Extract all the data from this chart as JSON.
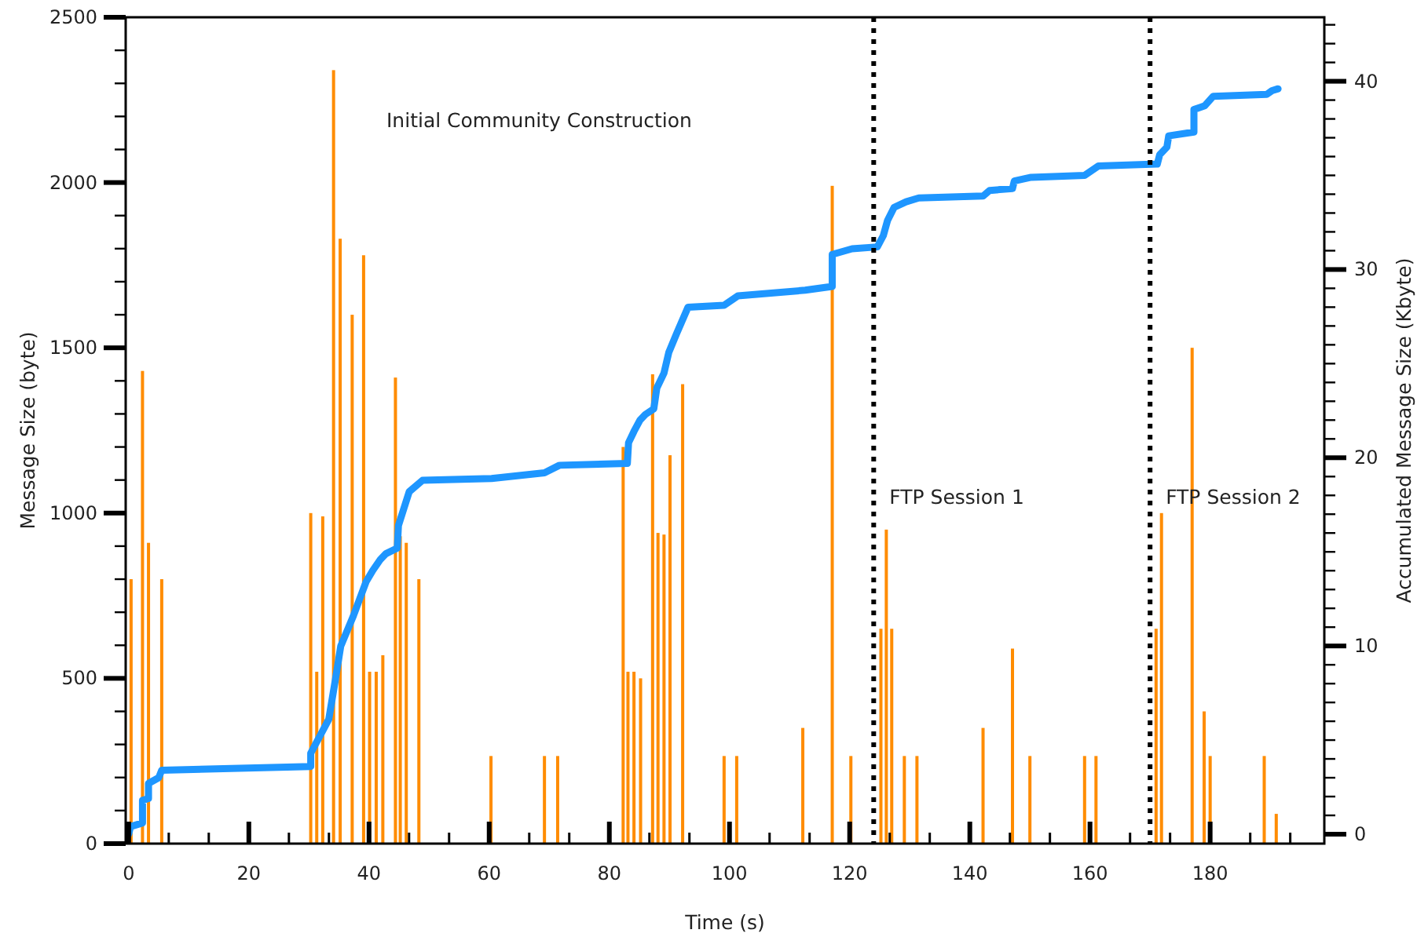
{
  "chart_data": {
    "type": "bar",
    "xlabel": "Time (s)",
    "ylabel": "Message Size (byte)",
    "y2label": "Accumulated Message Size (Kbyte)",
    "annotations": [
      "Initial Community Construction"
    ],
    "xlim": [
      -0.5,
      199
    ],
    "xticks": [
      0,
      {
        "value": 6.67,
        "label": null
      },
      {
        "value": 13.33,
        "label": null
      },
      20,
      {
        "value": 26.67,
        "label": null
      },
      {
        "value": 33.33,
        "label": null
      },
      40,
      {
        "value": 46.67,
        "label": null
      },
      {
        "value": 53.33,
        "label": null
      },
      60,
      {
        "value": 66.67,
        "label": null
      },
      {
        "value": 73.33,
        "label": null
      },
      80,
      {
        "value": 86.67,
        "label": null
      },
      {
        "value": 93.33,
        "label": null
      },
      100,
      {
        "value": 106.67,
        "label": null
      },
      {
        "value": 113.33,
        "label": null
      },
      120,
      {
        "value": 126.67,
        "label": null
      },
      {
        "value": 133.33,
        "label": null
      },
      140,
      {
        "value": 146.67,
        "label": null
      },
      {
        "value": 153.33,
        "label": null
      },
      160,
      {
        "value": 166.67,
        "label": null
      },
      {
        "value": 173.33,
        "label": null
      },
      180,
      {
        "value": 186.67,
        "label": null
      },
      {
        "value": 193.33,
        "label": null
      }
    ],
    "ylim": [
      0,
      2500
    ],
    "yticks": [
      0,
      {
        "value": 100,
        "label": null
      },
      {
        "value": 200,
        "label": null
      },
      {
        "value": 300,
        "label": null
      },
      {
        "value": 400,
        "label": null
      },
      500,
      {
        "value": 600,
        "label": null
      },
      {
        "value": 700,
        "label": null
      },
      {
        "value": 800,
        "label": null
      },
      {
        "value": 900,
        "label": null
      },
      1000,
      {
        "value": 1100,
        "label": null
      },
      {
        "value": 1200,
        "label": null
      },
      {
        "value": 1300,
        "label": null
      },
      {
        "value": 1400,
        "label": null
      },
      1500,
      {
        "value": 1600,
        "label": null
      },
      {
        "value": 1700,
        "label": null
      },
      {
        "value": 1800,
        "label": null
      },
      {
        "value": 1900,
        "label": null
      },
      2000,
      {
        "value": 2100,
        "label": null
      },
      {
        "value": 2200,
        "label": null
      },
      {
        "value": 2300,
        "label": null
      },
      {
        "value": 2400,
        "label": null
      },
      2500
    ],
    "y2lim": [
      -0.5,
      43.4
    ],
    "y2ticks": [
      0,
      {
        "value": 1,
        "label": null
      },
      {
        "value": 2,
        "label": null
      },
      {
        "value": 3,
        "label": null
      },
      {
        "value": 4,
        "label": null
      },
      {
        "value": 5,
        "label": null
      },
      {
        "value": 6,
        "label": null
      },
      {
        "value": 7,
        "label": null
      },
      {
        "value": 8,
        "label": null
      },
      {
        "value": 9,
        "label": null
      },
      10,
      {
        "value": 11,
        "label": null
      },
      {
        "value": 12,
        "label": null
      },
      {
        "value": 13,
        "label": null
      },
      {
        "value": 14,
        "label": null
      },
      {
        "value": 15,
        "label": null
      },
      {
        "value": 16,
        "label": null
      },
      {
        "value": 17,
        "label": null
      },
      {
        "value": 18,
        "label": null
      },
      {
        "value": 19,
        "label": null
      },
      20,
      {
        "value": 21,
        "label": null
      },
      {
        "value": 22,
        "label": null
      },
      {
        "value": 23,
        "label": null
      },
      {
        "value": 24,
        "label": null
      },
      {
        "value": 25,
        "label": null
      },
      {
        "value": 26,
        "label": null
      },
      {
        "value": 27,
        "label": null
      },
      {
        "value": 28,
        "label": null
      },
      {
        "value": 29,
        "label": null
      },
      30,
      {
        "value": 31,
        "label": null
      },
      {
        "value": 32,
        "label": null
      },
      {
        "value": 33,
        "label": null
      },
      {
        "value": 34,
        "label": null
      },
      {
        "value": 35,
        "label": null
      },
      {
        "value": 36,
        "label": null
      },
      {
        "value": 37,
        "label": null
      },
      {
        "value": 38,
        "label": null
      },
      {
        "value": 39,
        "label": null
      },
      40,
      {
        "value": 41,
        "label": null
      },
      {
        "value": 42,
        "label": null
      },
      {
        "value": 43,
        "label": null
      }
    ],
    "ref_lines": [
      {
        "axis": "x",
        "value": 124,
        "label": "FTP Session 1",
        "color": "#000000",
        "line_style": "dotted"
      },
      {
        "axis": "x",
        "value": 170,
        "label": "FTP Session 2",
        "color": "#000000",
        "line_style": "dotted"
      }
    ],
    "series": [
      {
        "color": "#ff8c00",
        "x": [
          0.4,
          2.3,
          3.3,
          5.5,
          30.3,
          31.3,
          32.3,
          34.1,
          35.2,
          37.2,
          39.1,
          40.1,
          41.2,
          42.3,
          44.4,
          45.2,
          46.2,
          48.3,
          60.3,
          69.2,
          71.4,
          82.3,
          83.1,
          84.1,
          85.2,
          87.2,
          88.1,
          89.1,
          90.1,
          92.2,
          99.1,
          101.2,
          112.2,
          117.1,
          120.2,
          125.2,
          126.1,
          127,
          129.1,
          131.2,
          142.2,
          147.1,
          150,
          159.1,
          161,
          171,
          171.9,
          177,
          179,
          180,
          189,
          191
        ],
        "values": [
          800,
          1430,
          910,
          800,
          1000,
          520,
          990,
          2340,
          1830,
          1600,
          1780,
          520,
          520,
          570,
          1410,
          930,
          910,
          800,
          265,
          265,
          265,
          1200,
          520,
          520,
          500,
          1420,
          940,
          935,
          1175,
          1390,
          265,
          265,
          350,
          1990,
          265,
          650,
          950,
          650,
          265,
          265,
          350,
          590,
          265,
          265,
          265,
          650,
          1000,
          1500,
          400,
          265,
          265,
          90
        ]
      },
      {
        "type": "line",
        "axis": "y2",
        "color": "#1e96ff",
        "x": [
          0,
          0.3,
          2.3,
          2.3,
          3.3,
          3.3,
          5.0,
          5.5,
          30.3,
          30.3,
          31.3,
          32.3,
          33.3,
          34.4,
          35.3,
          37.4,
          39.5,
          40.6,
          41.9,
          42.8,
          44.7,
          44.9,
          45.7,
          46.7,
          48.9,
          60.4,
          69.2,
          71.7,
          83.0,
          83.2,
          84.1,
          85.1,
          86.0,
          87.4,
          87.9,
          89.1,
          89.9,
          91.2,
          93.1,
          99.1,
          101.4,
          112.6,
          117.1,
          117.1,
          120.4,
          124.6,
          125.6,
          126.3,
          127.4,
          129.4,
          131.5,
          142.2,
          143.3,
          147.1,
          147.4,
          150.2,
          159.1,
          161.4,
          171.2,
          171.6,
          172.8,
          173.1,
          177.3,
          177.3,
          179.1,
          180.5,
          189.4,
          190.3,
          191.3
        ],
        "values": [
          0,
          0.4,
          0.6,
          1.8,
          1.9,
          2.7,
          3.0,
          3.4,
          3.6,
          4.3,
          4.9,
          5.5,
          6.1,
          8.2,
          10.0,
          11.6,
          13.4,
          14.0,
          14.6,
          14.9,
          15.2,
          16.4,
          17.2,
          18.2,
          18.8,
          18.9,
          19.2,
          19.6,
          19.7,
          20.8,
          21.4,
          22.0,
          22.3,
          22.6,
          23.7,
          24.5,
          25.6,
          26.6,
          28.0,
          28.1,
          28.6,
          28.9,
          29.1,
          30.8,
          31.1,
          31.2,
          31.8,
          32.6,
          33.3,
          33.6,
          33.8,
          33.9,
          34.2,
          34.3,
          34.7,
          34.9,
          35.0,
          35.5,
          35.6,
          36.1,
          36.5,
          37.1,
          37.3,
          38.5,
          38.7,
          39.2,
          39.3,
          39.5,
          39.6
        ]
      }
    ]
  }
}
